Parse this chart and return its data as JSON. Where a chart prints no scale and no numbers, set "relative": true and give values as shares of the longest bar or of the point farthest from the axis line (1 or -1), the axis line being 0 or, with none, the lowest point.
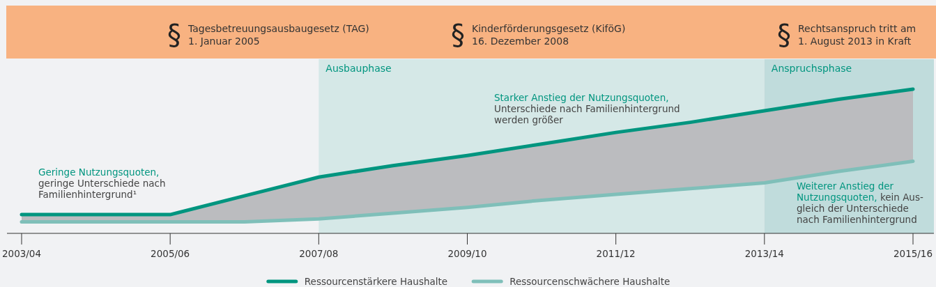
{
  "chart_data": {
    "type": "line",
    "relative": true,
    "categories": [
      "2003/04",
      null,
      "2005/06",
      null,
      "2007/08",
      null,
      "2009/10",
      null,
      "2011/12",
      null,
      "2013/14",
      null,
      "2015/16"
    ],
    "series": [
      {
        "name": "Ressourcenstärkere Haushalte",
        "color": "#00957f",
        "values": [
          0.13,
          0.13,
          0.13,
          0.26,
          0.39,
          0.47,
          0.54,
          0.62,
          0.7,
          0.77,
          0.85,
          0.93,
          1
        ],
        "lower": [
          0.08,
          0.08,
          0.08,
          0.08,
          0.1,
          0.14,
          0.18,
          0.23,
          0.27,
          0.31,
          0.35,
          0.43,
          0.5
        ],
        "upper": [
          0.13,
          0.13,
          0.13,
          0.26,
          0.39,
          0.47,
          0.54,
          0.62,
          0.7,
          0.77,
          0.85,
          0.93,
          1
        ]
      },
      {
        "name": "Ressourcenschwächere Haushalte",
        "color": "#7fbfb9",
        "values": [
          0.08,
          0.08,
          0.08,
          0.08,
          0.1,
          0.14,
          0.18,
          0.23,
          0.27,
          0.31,
          0.35,
          0.43,
          0.5
        ]
      }
    ],
    "bands": [
      {
        "axis": "x",
        "from": "2007/08",
        "to": "2013/14",
        "label": "Ausbauphase",
        "color": "#d5e8e7"
      },
      {
        "axis": "x",
        "from": "2013/14",
        "to": "2015/16",
        "label": "Anspruchsphase",
        "color": "#c0dcdc"
      }
    ],
    "annotations": [
      "§ Tagesbetreuungsausbaugesetz (TAG)\n1. Januar 2005",
      "§ Kinderförderungsgesetz (KiföG)\n16. Dezember 2008",
      "§ Rechtsanspruch tritt am\n1. August 2013 in Kraft",
      "Geringe Nutzungsquoten,\ngeringe Unterschiede nach\nFamilienhintergrund¹",
      "Starker Anstieg der Nutzungsquoten,\nUnterschiede nach Familienhintergrund\nwerden größer",
      "Weiterer Anstieg der\nNutzungsquoten, kein Aus-\ngleich der Unterschiede\nnach Familienhintergrund"
    ],
    "legend": "bottom"
  }
}
